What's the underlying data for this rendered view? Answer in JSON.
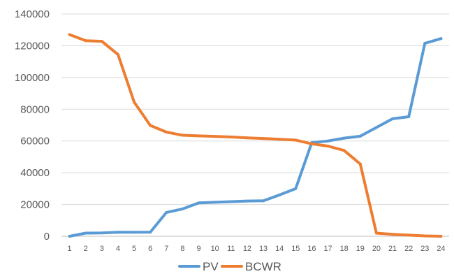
{
  "chart_data": {
    "type": "line",
    "title": "",
    "xlabel": "",
    "ylabel": "",
    "categories": [
      "1",
      "2",
      "3",
      "4",
      "5",
      "6",
      "7",
      "8",
      "9",
      "10",
      "11",
      "12",
      "13",
      "14",
      "15",
      "16",
      "17",
      "18",
      "19",
      "20",
      "21",
      "22",
      "23",
      "24"
    ],
    "ylim": [
      0,
      140000
    ],
    "yticks": [
      "0",
      "20000",
      "40000",
      "60000",
      "80000",
      "100000",
      "120000",
      "140000"
    ],
    "grid": true,
    "legend_position": "bottom",
    "series": [
      {
        "name": "PV",
        "color": "#5b9bd5",
        "values": [
          0,
          2000,
          2100,
          2500,
          2500,
          2600,
          15000,
          17200,
          21000,
          21400,
          21800,
          22200,
          22300,
          26000,
          30000,
          59000,
          60000,
          61800,
          63000,
          68500,
          74000,
          75300,
          121500,
          124500
        ]
      },
      {
        "name": "BCWR",
        "color": "#ed7d31",
        "values": [
          127000,
          123200,
          122800,
          114500,
          84500,
          69800,
          65600,
          63600,
          63200,
          62900,
          62500,
          62000,
          61600,
          61100,
          60600,
          58200,
          56800,
          54000,
          45500,
          2000,
          1200,
          700,
          200,
          0
        ]
      }
    ]
  }
}
